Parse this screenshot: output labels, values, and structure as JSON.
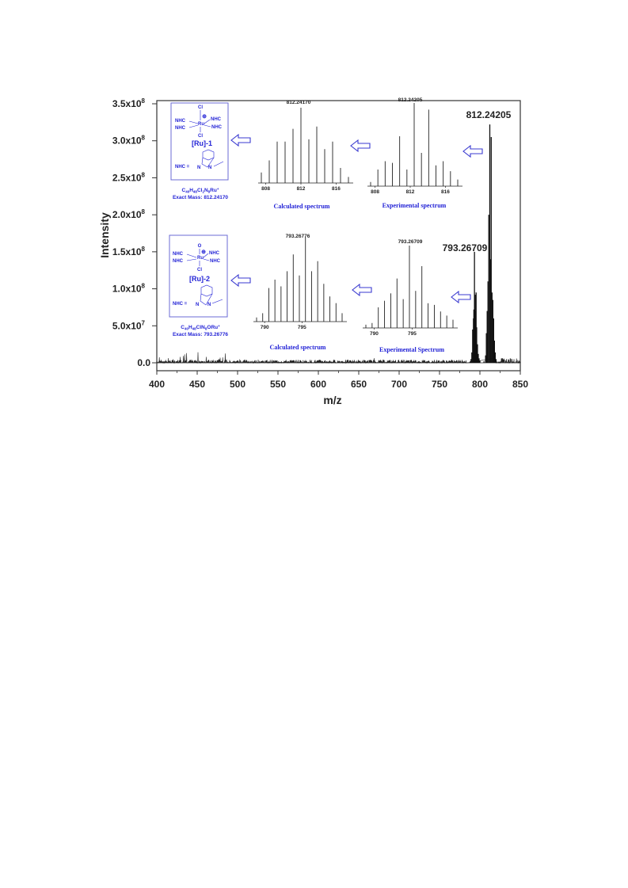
{
  "chart_data": {
    "type": "line",
    "xlabel": "m/z",
    "ylabel": "Intensity",
    "xlim": [
      400,
      850
    ],
    "ylim": [
      0,
      350000000
    ],
    "x_ticks": [
      "400",
      "450",
      "500",
      "550",
      "600",
      "650",
      "700",
      "750",
      "800",
      "850"
    ],
    "y_ticks": [
      {
        "value": 0,
        "label": "0.0"
      },
      {
        "value": 50000000,
        "label": "5.0x10",
        "exp": "7"
      },
      {
        "value": 100000000,
        "label": "1.0x10",
        "exp": "8"
      },
      {
        "value": 150000000,
        "label": "1.5x10",
        "exp": "8"
      },
      {
        "value": 200000000,
        "label": "2.0x10",
        "exp": "8"
      },
      {
        "value": 250000000,
        "label": "2.5x10",
        "exp": "8"
      },
      {
        "value": 300000000,
        "label": "3.0x10",
        "exp": "8"
      },
      {
        "value": 350000000,
        "label": "3.5x10",
        "exp": "8"
      }
    ],
    "peaks": [
      {
        "x": 788,
        "y": 2000000
      },
      {
        "x": 789,
        "y": 5000000
      },
      {
        "x": 790,
        "y": 14000000
      },
      {
        "x": 791,
        "y": 45000000
      },
      {
        "x": 792,
        "y": 60000000
      },
      {
        "x": 792.5,
        "y": 72000000
      },
      {
        "x": 793.27,
        "y": 150000000
      },
      {
        "x": 794,
        "y": 92000000
      },
      {
        "x": 794.6,
        "y": 70000000
      },
      {
        "x": 795.3,
        "y": 95000000
      },
      {
        "x": 796,
        "y": 48000000
      },
      {
        "x": 797,
        "y": 25000000
      },
      {
        "x": 798,
        "y": 12000000
      },
      {
        "x": 799,
        "y": 6000000
      },
      {
        "x": 800,
        "y": 3000000
      },
      {
        "x": 805,
        "y": 2000000
      },
      {
        "x": 807,
        "y": 10000000
      },
      {
        "x": 808,
        "y": 40000000
      },
      {
        "x": 809,
        "y": 70000000
      },
      {
        "x": 810,
        "y": 110000000
      },
      {
        "x": 811,
        "y": 200000000
      },
      {
        "x": 812.24,
        "y": 322000000
      },
      {
        "x": 813,
        "y": 140000000
      },
      {
        "x": 814,
        "y": 305000000
      },
      {
        "x": 815,
        "y": 95000000
      },
      {
        "x": 816,
        "y": 85000000
      },
      {
        "x": 817,
        "y": 60000000
      },
      {
        "x": 818,
        "y": 30000000
      },
      {
        "x": 819,
        "y": 14000000
      },
      {
        "x": 820,
        "y": 5000000
      }
    ],
    "annotations": [
      {
        "text": "812.24205",
        "x": 812.24
      },
      {
        "text": "793.26709",
        "x": 793.27
      }
    ],
    "insets": [
      {
        "title": "Calculated spectrum",
        "peak_label": "812.24170",
        "ticks": [
          "808",
          "812",
          "816"
        ]
      },
      {
        "title": "Experimental spectrum",
        "peak_label": "812.24205",
        "ticks": [
          "808",
          "812",
          "816"
        ]
      },
      {
        "title": "Calculated spectrum",
        "peak_label": "793.26776",
        "ticks": [
          "790",
          "795"
        ]
      },
      {
        "title": "Experimental Spectrum",
        "peak_label": "793.26709",
        "ticks": [
          "790",
          "795"
        ]
      }
    ],
    "structures": [
      {
        "top_ligand": "Cl",
        "charge": "⊕",
        "metal": "Ru",
        "ligand": "NHC",
        "bottom_ligand": "Cl",
        "name": "[Ru]-1",
        "nhc_label": "NHC =",
        "atom": "N",
        "formula_main": "C",
        "formula": [
          "C",
          "40",
          "H",
          "48",
          "Cl",
          "2",
          "N",
          "8",
          "Ru",
          "+"
        ],
        "mass": "Exact Mass: 812.24170"
      },
      {
        "top_ligand": "O",
        "charge": "⊕",
        "metal": "Ru",
        "ligand": "NHC",
        "bottom_ligand": "Cl",
        "name": "[Ru]-2",
        "nhc_label": "NHC =",
        "atom": "N",
        "formula": [
          "C",
          "40",
          "H",
          "48",
          "ClN",
          "8",
          "ORu",
          "+"
        ],
        "mass": "Exact Mass: 793.26776"
      }
    ]
  }
}
